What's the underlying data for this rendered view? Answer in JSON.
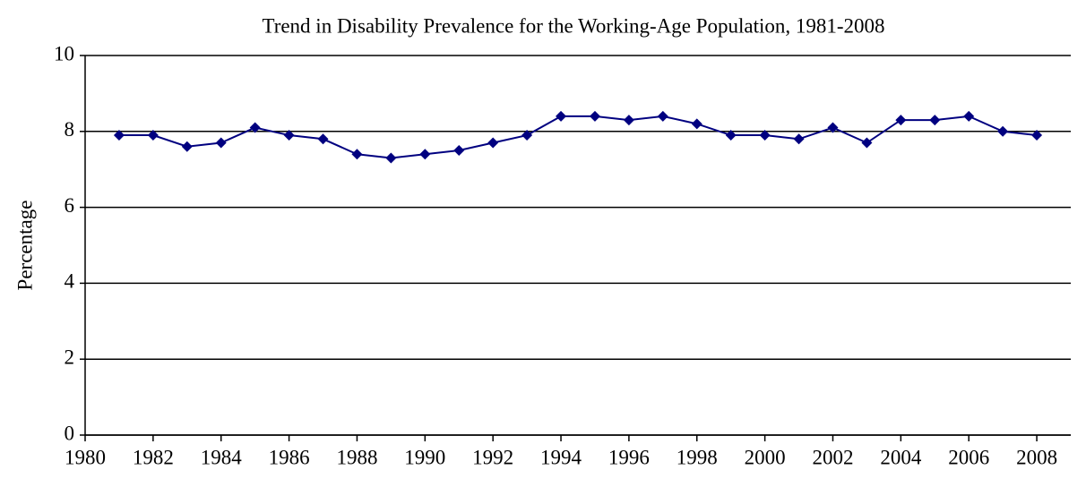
{
  "chart_data": {
    "type": "line",
    "title": "Trend in Disability Prevalence for the Working-Age Population, 1981-2008",
    "y_label": "Percentage",
    "x": [
      1981,
      1982,
      1983,
      1984,
      1985,
      1986,
      1987,
      1988,
      1989,
      1990,
      1991,
      1992,
      1993,
      1994,
      1995,
      1996,
      1997,
      1998,
      1999,
      2000,
      2001,
      2002,
      2003,
      2004,
      2005,
      2006,
      2007,
      2008
    ],
    "values": [
      7.9,
      7.9,
      7.6,
      7.7,
      8.1,
      7.9,
      7.8,
      7.4,
      7.3,
      7.4,
      7.5,
      7.7,
      7.9,
      8.4,
      8.4,
      8.3,
      8.4,
      8.2,
      7.9,
      7.9,
      7.8,
      8.1,
      7.7,
      8.3,
      8.3,
      8.4,
      8.0,
      7.9
    ],
    "color": "#000080",
    "xlim": [
      1980,
      2009
    ],
    "xticks": [
      1980,
      1982,
      1984,
      1986,
      1988,
      1990,
      1992,
      1994,
      1996,
      1998,
      2000,
      2002,
      2004,
      2006,
      2008
    ],
    "ylim": [
      0,
      10
    ],
    "yticks": [
      0,
      2,
      4,
      6,
      8,
      10
    ],
    "grid": true
  }
}
